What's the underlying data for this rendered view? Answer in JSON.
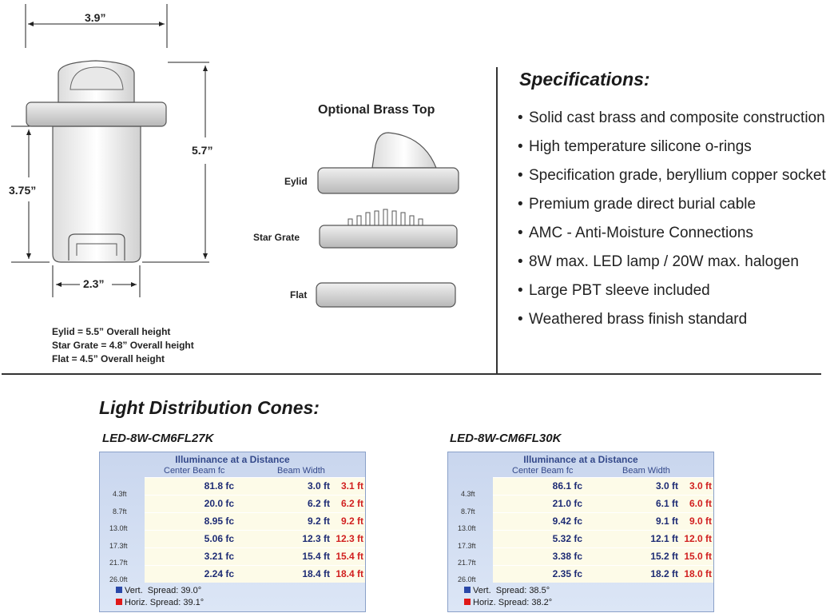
{
  "drawing": {
    "dim_width": "3.9”",
    "dim_height": "5.7”",
    "dim_sleeve_height": "3.75”",
    "dim_base_width": "2.3”",
    "optional_top_title": "Optional Brass Top",
    "tops": [
      {
        "label": "Eylid"
      },
      {
        "label": "Star Grate"
      },
      {
        "label": "Flat"
      }
    ],
    "height_notes": [
      "Eylid = 5.5” Overall height",
      "Star Grate = 4.8” Overall height",
      "Flat = 4.5” Overall height"
    ]
  },
  "specifications": {
    "title": "Specifications:",
    "items": [
      "Solid cast brass and composite construction",
      "High temperature silicone o-rings",
      "Specification grade, beryllium copper socket",
      "Premium grade direct burial cable",
      "AMC - Anti-Moisture Connections",
      "8W max. LED lamp / 20W max. halogen",
      "Large PBT sleeve included",
      "Weathered brass finish standard"
    ]
  },
  "cones": {
    "title": "Light Distribution Cones:",
    "panels": [
      {
        "model": "LED-8W-CM6FL27K",
        "panel_title": "Illuminance at a Distance",
        "col_center": "Center Beam fc",
        "col_width": "Beam Width",
        "cone_color": "#6a8fd0",
        "rows": [
          {
            "distance": "4.3ft",
            "center": "81.8 fc",
            "vert": "3.0 ft",
            "horiz": "3.1 ft"
          },
          {
            "distance": "8.7ft",
            "center": "20.0 fc",
            "vert": "6.2 ft",
            "horiz": "6.2 ft"
          },
          {
            "distance": "13.0ft",
            "center": "8.95 fc",
            "vert": "9.2 ft",
            "horiz": "9.2 ft"
          },
          {
            "distance": "17.3ft",
            "center": "5.06 fc",
            "vert": "12.3 ft",
            "horiz": "12.3 ft"
          },
          {
            "distance": "21.7ft",
            "center": "3.21 fc",
            "vert": "15.4 ft",
            "horiz": "15.4 ft"
          },
          {
            "distance": "26.0ft",
            "center": "2.24 fc",
            "vert": "18.4 ft",
            "horiz": "18.4 ft"
          }
        ],
        "legend_vert": "Vert.  Spread: 39.0°",
        "legend_horiz": "Horiz. Spread: 39.1°"
      },
      {
        "model": "LED-8W-CM6FL30K",
        "panel_title": "Illuminance at a Distance",
        "col_center": "Center Beam fc",
        "col_width": "Beam Width",
        "cone_color": "#b48ac4",
        "rows": [
          {
            "distance": "4.3ft",
            "center": "86.1 fc",
            "vert": "3.0 ft",
            "horiz": "3.0 ft"
          },
          {
            "distance": "8.7ft",
            "center": "21.0 fc",
            "vert": "6.1 ft",
            "horiz": "6.0 ft"
          },
          {
            "distance": "13.0ft",
            "center": "9.42 fc",
            "vert": "9.1 ft",
            "horiz": "9.0 ft"
          },
          {
            "distance": "17.3ft",
            "center": "5.32 fc",
            "vert": "12.1 ft",
            "horiz": "12.0 ft"
          },
          {
            "distance": "21.7ft",
            "center": "3.38 fc",
            "vert": "15.2 ft",
            "horiz": "15.0 ft"
          },
          {
            "distance": "26.0ft",
            "center": "2.35 fc",
            "vert": "18.2 ft",
            "horiz": "18.0 ft"
          }
        ],
        "legend_vert": "Vert.  Spread: 38.5°",
        "legend_horiz": "Horiz. Spread: 38.2°"
      }
    ]
  },
  "colors": {
    "vert_legend": "#2a48a8",
    "horiz_legend": "#e01818",
    "horiz_text": "#d11f1f",
    "value_text": "#1d2b74"
  }
}
